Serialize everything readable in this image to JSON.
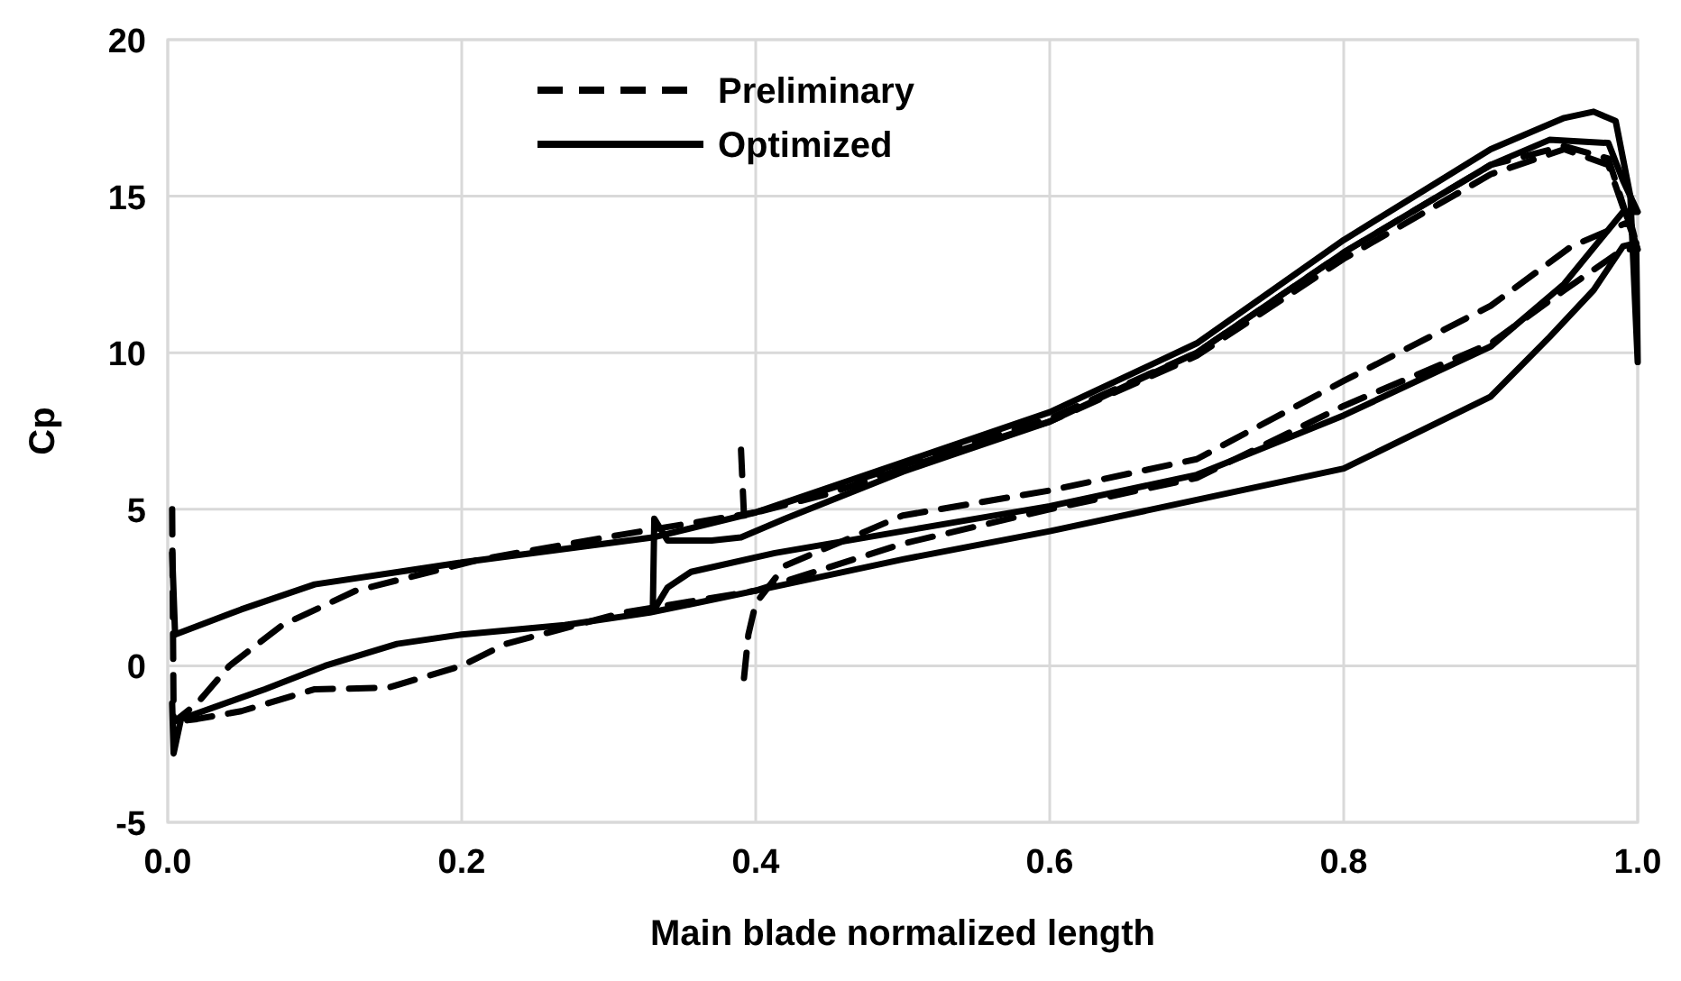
{
  "chart_data": {
    "type": "line",
    "xlabel": "Main blade normalized length",
    "ylabel": "Cp",
    "xlim": [
      0,
      1
    ],
    "xticks": [
      {
        "value": 0,
        "label": "0.0"
      },
      {
        "value": 0.2,
        "label": "0.2"
      },
      {
        "value": 0.4,
        "label": "0.4"
      },
      {
        "value": 0.6,
        "label": "0.6"
      },
      {
        "value": 0.8,
        "label": "0.8"
      },
      {
        "value": 1,
        "label": "1.0"
      }
    ],
    "ylim": [
      -5,
      20
    ],
    "yticks": [
      -5,
      0,
      5,
      10,
      15,
      20
    ],
    "grid": true,
    "legend": "top left",
    "marker": "none",
    "series": [
      {
        "name": "Preliminary",
        "color": "#000000",
        "line_style": "dashed",
        "x": [
          0.003,
          0.004,
          0.02,
          0.042,
          0.078,
          0.128,
          0.213,
          0.31,
          0.4,
          0.5,
          0.6,
          0.7,
          0.8,
          0.9,
          0.95,
          0.98,
          0.995,
          1.0,
          0.99,
          0.95,
          0.9,
          0.8,
          0.7,
          0.6,
          0.5,
          0.4,
          0.31,
          0.23,
          0.2,
          0.15,
          0.1,
          0.05,
          0.02,
          0.004
        ],
        "values": [
          5.0,
          -1.8,
          -1.2,
          0.0,
          1.3,
          2.4,
          3.4,
          4.2,
          4.9,
          6.4,
          7.9,
          10.0,
          13.2,
          16.0,
          16.6,
          16.2,
          14.0,
          13.3,
          13.3,
          12.0,
          10.3,
          8.3,
          6.0,
          5.0,
          3.9,
          2.4,
          1.7,
          0.7,
          0.0,
          -0.7,
          -0.75,
          -1.45,
          -1.7,
          -1.8
        ]
      },
      {
        "color": "#000000",
        "line_style": "dashed",
        "x": [
          0.39,
          0.392,
          0.45,
          0.5,
          0.6,
          0.7,
          0.8,
          0.9,
          0.95,
          0.98,
          1.0,
          0.995,
          0.955,
          0.9,
          0.8,
          0.7,
          0.6,
          0.5,
          0.42,
          0.4,
          0.395,
          0.392
        ],
        "values": [
          6.9,
          4.8,
          5.5,
          6.3,
          7.8,
          9.9,
          13.0,
          15.7,
          16.5,
          16.0,
          13.3,
          14.2,
          13.4,
          11.5,
          9.1,
          6.6,
          5.6,
          4.8,
          3.2,
          2.0,
          1.0,
          -0.4
        ]
      },
      {
        "name": "Optimized",
        "color": "#000000",
        "line_style": "solid",
        "x": [
          0.003,
          0.005,
          0.05,
          0.1,
          0.2,
          0.33,
          0.4,
          0.5,
          0.6,
          0.7,
          0.8,
          0.9,
          0.95,
          0.97,
          0.985,
          0.995,
          1.0,
          0.999,
          0.99,
          0.97,
          0.94,
          0.9,
          0.8,
          0.7,
          0.6,
          0.5,
          0.4,
          0.328,
          0.27,
          0.2,
          0.156,
          0.107,
          0.066,
          0.009,
          0.004,
          0.003
        ],
        "values": [
          3.6,
          1.0,
          1.8,
          2.6,
          3.3,
          4.1,
          4.9,
          6.5,
          8.1,
          10.3,
          13.6,
          16.5,
          17.5,
          17.7,
          17.4,
          15.0,
          9.7,
          13.5,
          13.4,
          12.0,
          10.5,
          8.6,
          6.3,
          5.3,
          4.3,
          3.4,
          2.4,
          1.7,
          1.3,
          1.0,
          0.7,
          0.0,
          -0.75,
          -1.7,
          -2.8,
          -1.2
        ]
      },
      {
        "color": "#000000",
        "line_style": "solid",
        "x": [
          0.33,
          0.331,
          0.34,
          0.37,
          0.39,
          0.42,
          0.5,
          0.6,
          0.7,
          0.8,
          0.9,
          0.94,
          0.98,
          0.99,
          1.0,
          0.99,
          0.95,
          0.9,
          0.8,
          0.7,
          0.6,
          0.5,
          0.413,
          0.356,
          0.34,
          0.331
        ],
        "values": [
          1.8,
          4.7,
          4.0,
          4.0,
          4.1,
          4.7,
          6.2,
          7.8,
          10.0,
          13.2,
          16.0,
          16.8,
          16.7,
          15.5,
          14.5,
          14.5,
          12.2,
          10.2,
          8.0,
          6.1,
          5.1,
          4.3,
          3.6,
          3.0,
          2.5,
          1.8
        ]
      }
    ]
  }
}
